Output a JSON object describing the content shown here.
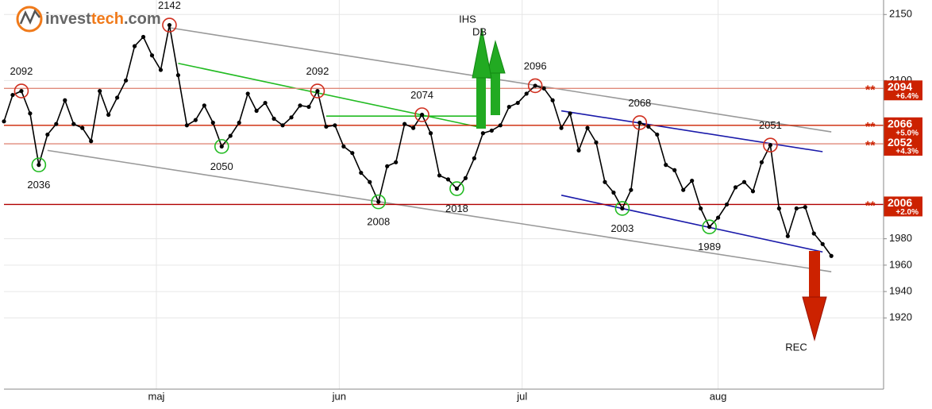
{
  "chart_data": {
    "type": "line",
    "logo": {
      "part1": "invest",
      "part2": "tech",
      "part3": ".com"
    },
    "values": [
      2069,
      2089,
      2092,
      2075,
      2036,
      2059,
      2067,
      2085,
      2067,
      2064,
      2054,
      2092,
      2074,
      2087,
      2100,
      2126,
      2133,
      2119,
      2108,
      2142,
      2104,
      2066,
      2070,
      2081,
      2068,
      2050,
      2058,
      2068,
      2090,
      2077,
      2083,
      2071,
      2066,
      2072,
      2081,
      2080,
      2092,
      2065,
      2066,
      2050,
      2045,
      2030,
      2023,
      2008,
      2035,
      2038,
      2067,
      2064,
      2074,
      2060,
      2028,
      2025,
      2018,
      2026,
      2041,
      2060,
      2062,
      2066,
      2080,
      2083,
      2090,
      2096,
      2094,
      2085,
      2064,
      2075,
      2047,
      2064,
      2053,
      2023,
      2015,
      2003,
      2017,
      2068,
      2065,
      2059,
      2036,
      2032,
      2017,
      2024,
      2003,
      1989,
      1996,
      2006,
      2019,
      2023,
      2016,
      2038,
      2051,
      2003,
      1982,
      2003,
      2004,
      1984,
      1976,
      1967
    ],
    "color": "#000000",
    "xlim": [
      0,
      101
    ],
    "xticks": [
      {
        "value": 17.5,
        "label": "maj"
      },
      {
        "value": 38.5,
        "label": "jun"
      },
      {
        "value": 59.5,
        "label": "jul"
      },
      {
        "value": 82,
        "label": "aug"
      }
    ],
    "ylim": [
      1866,
      2161
    ],
    "yticks": [
      1920,
      1940,
      1960,
      1980,
      2100,
      2150
    ],
    "grid": true,
    "extrema": [
      {
        "x": 2,
        "value": 2092,
        "kind": "top"
      },
      {
        "x": 4,
        "value": 2036,
        "kind": "bottom"
      },
      {
        "x": 19,
        "value": 2142,
        "kind": "top"
      },
      {
        "x": 25,
        "value": 2050,
        "kind": "bottom"
      },
      {
        "x": 36,
        "value": 2092,
        "kind": "top"
      },
      {
        "x": 43,
        "value": 2008,
        "kind": "bottom"
      },
      {
        "x": 48,
        "value": 2074,
        "kind": "top"
      },
      {
        "x": 52,
        "value": 2018,
        "kind": "bottom"
      },
      {
        "x": 61,
        "value": 2096,
        "kind": "top"
      },
      {
        "x": 71,
        "value": 2003,
        "kind": "bottom"
      },
      {
        "x": 73,
        "value": 2068,
        "kind": "top"
      },
      {
        "x": 81,
        "value": 1989,
        "kind": "bottom"
      },
      {
        "x": 88,
        "value": 2051,
        "kind": "top"
      }
    ],
    "levels_marker": "**",
    "levels": [
      {
        "value": 2094,
        "change": "+6.4%",
        "color": "#e08a7a"
      },
      {
        "value": 2066,
        "change": "+5.0%",
        "color": "#cc2200"
      },
      {
        "value": 2052,
        "change": "+4.3%",
        "color": "#e08a7a"
      },
      {
        "value": 2006,
        "change": "+2.0%",
        "color": "#b00000"
      }
    ],
    "trendlines": [
      {
        "x": [
          19,
          95
        ],
        "y": [
          2140,
          2061
        ],
        "color": "#999999"
      },
      {
        "x": [
          5,
          95
        ],
        "y": [
          2047,
          1955
        ],
        "color": "#999999"
      },
      {
        "x": [
          20,
          55
        ],
        "y": [
          2113,
          2064
        ],
        "color": "#22bb22"
      },
      {
        "x": [
          37,
          55
        ],
        "y": [
          2073,
          2073
        ],
        "color": "#22bb22"
      },
      {
        "x": [
          64,
          94
        ],
        "y": [
          2077,
          2046
        ],
        "color": "#1a1aaa"
      },
      {
        "x": [
          64,
          94
        ],
        "y": [
          2013,
          1970
        ],
        "color": "#1a1aaa"
      }
    ],
    "signals": [
      "IHS",
      "DB",
      "REC"
    ]
  }
}
